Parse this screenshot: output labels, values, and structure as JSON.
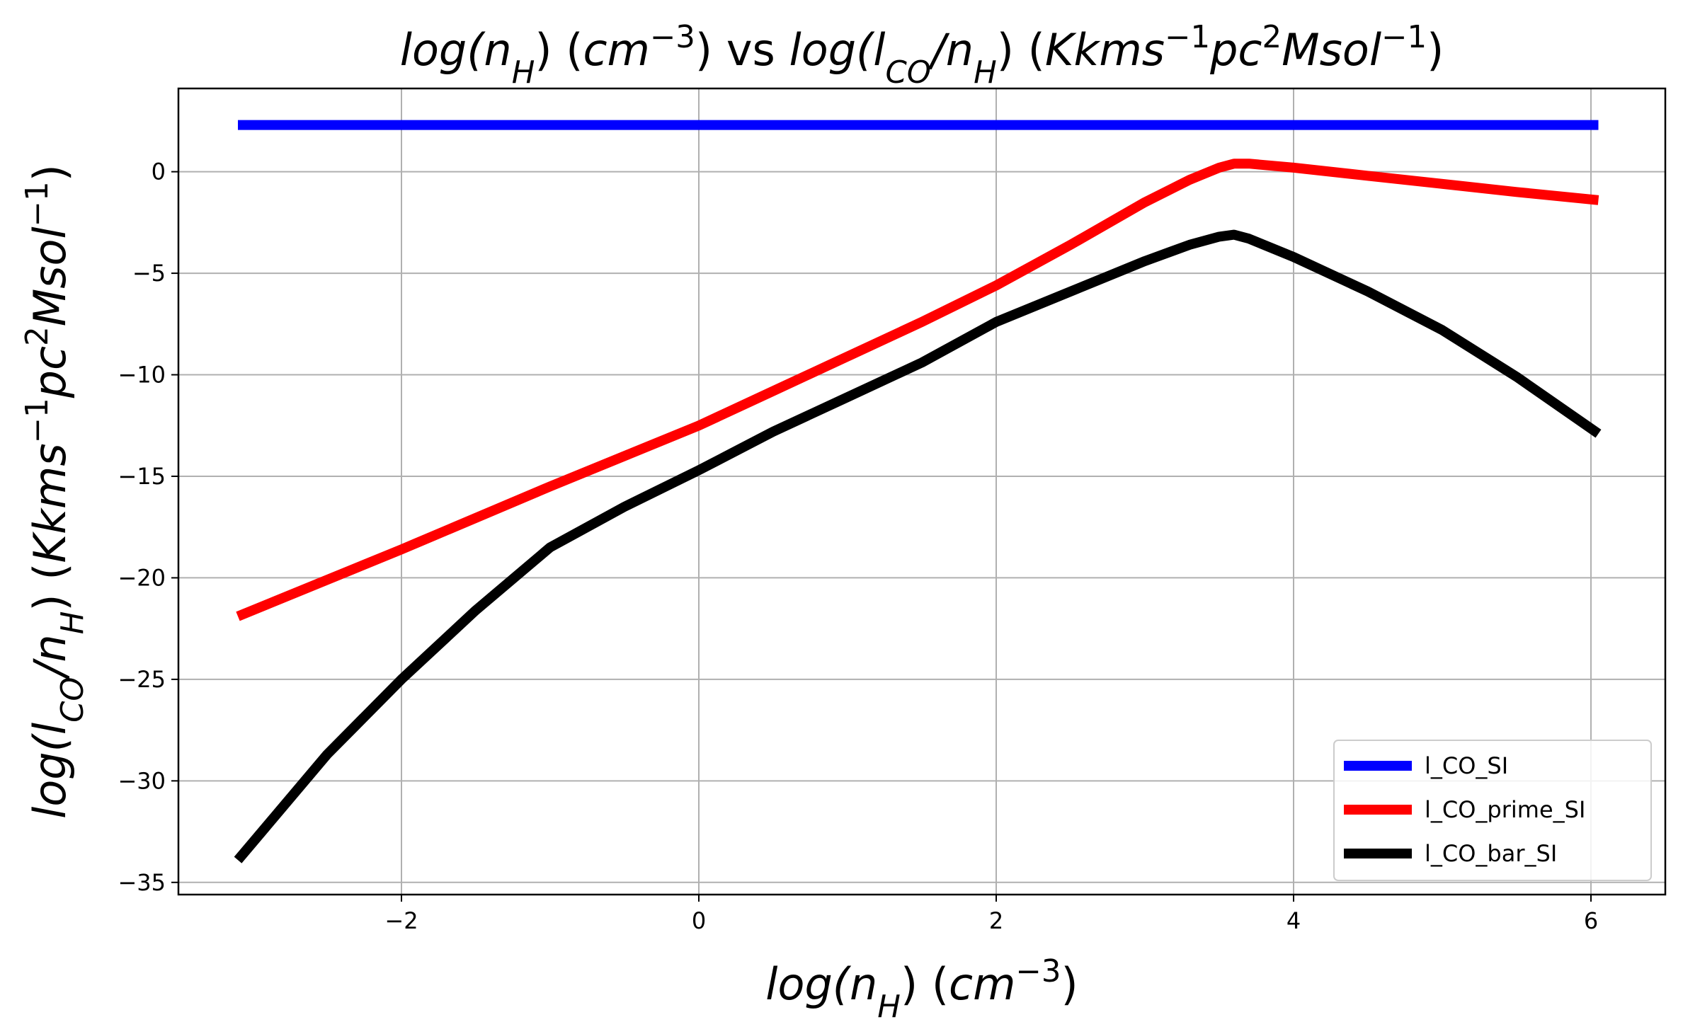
{
  "chart_data": {
    "type": "line",
    "title_parts": [
      {
        "t": "log(n",
        "it": true
      },
      {
        "t": "H",
        "sub": true,
        "it": true
      },
      {
        "t": ") (",
        "it": false
      },
      {
        "t": "cm",
        "it": true
      },
      {
        "t": "−3",
        "sup": true,
        "it": false
      },
      {
        "t": ") vs ",
        "it": false
      },
      {
        "t": "log(l",
        "it": true
      },
      {
        "t": "CO",
        "sub": true,
        "it": true
      },
      {
        "t": "/n",
        "it": true
      },
      {
        "t": "H",
        "sub": true,
        "it": true
      },
      {
        "t": ") (",
        "it": false
      },
      {
        "t": "Kkms",
        "it": true
      },
      {
        "t": "−1",
        "sup": true,
        "it": false
      },
      {
        "t": "pc",
        "it": true
      },
      {
        "t": "2",
        "sup": true,
        "it": false
      },
      {
        "t": "Msol",
        "it": true
      },
      {
        "t": "−1",
        "sup": true,
        "it": false
      },
      {
        "t": ")",
        "it": false
      }
    ],
    "xlabel_parts": [
      {
        "t": "log(n",
        "it": true
      },
      {
        "t": "H",
        "sub": true,
        "it": true
      },
      {
        "t": ") (",
        "it": false
      },
      {
        "t": "cm",
        "it": true
      },
      {
        "t": "−3",
        "sup": true,
        "it": false
      },
      {
        "t": ")",
        "it": false
      }
    ],
    "ylabel_parts": [
      {
        "t": "log(l",
        "it": true
      },
      {
        "t": "CO",
        "sub": true,
        "it": true
      },
      {
        "t": "/n",
        "it": true
      },
      {
        "t": "H",
        "sub": true,
        "it": true
      },
      {
        "t": ") (",
        "it": false
      },
      {
        "t": "Kkms",
        "it": true
      },
      {
        "t": "−1",
        "sup": true,
        "it": false
      },
      {
        "t": "pc",
        "it": true
      },
      {
        "t": "2",
        "sup": true,
        "it": false
      },
      {
        "t": "Msol",
        "it": true
      },
      {
        "t": "−1",
        "sup": true,
        "it": false
      },
      {
        "t": ")",
        "it": false
      }
    ],
    "xlim": [
      -3.5,
      6.5
    ],
    "ylim": [
      -35.6,
      4.1
    ],
    "xticks": [
      -2,
      0,
      2,
      4,
      6
    ],
    "xtick_labels": [
      "−2",
      "0",
      "2",
      "4",
      "6"
    ],
    "yticks": [
      0,
      -5,
      -10,
      -15,
      -20,
      -25,
      -30,
      -35
    ],
    "ytick_labels": [
      "0",
      "−5",
      "−10",
      "−15",
      "−20",
      "−25",
      "−30",
      "−35"
    ],
    "grid": true,
    "legend_placement": "lower-right",
    "series": [
      {
        "name": "l_CO_SI",
        "color": "#0000ff",
        "x": [
          -3.1,
          6.05
        ],
        "y": [
          2.3,
          2.3
        ]
      },
      {
        "name": "l_CO_prime_SI",
        "color": "#ff0000",
        "x": [
          -3.1,
          -2.0,
          -1.0,
          0.0,
          0.5,
          1.0,
          1.5,
          2.0,
          2.5,
          3.0,
          3.3,
          3.5,
          3.6,
          3.7,
          4.0,
          4.5,
          5.0,
          5.5,
          6.05
        ],
        "y": [
          -21.9,
          -18.6,
          -15.5,
          -12.5,
          -10.8,
          -9.1,
          -7.4,
          -5.6,
          -3.6,
          -1.5,
          -0.4,
          0.2,
          0.4,
          0.4,
          0.2,
          -0.2,
          -0.6,
          -1.0,
          -1.4
        ]
      },
      {
        "name": "l_CO_bar_SI",
        "color": "#000000",
        "x": [
          -3.1,
          -2.5,
          -2.0,
          -1.5,
          -1.0,
          -0.5,
          0.0,
          0.5,
          1.0,
          1.5,
          2.0,
          2.5,
          3.0,
          3.3,
          3.5,
          3.6,
          3.7,
          4.0,
          4.5,
          5.0,
          5.5,
          6.05
        ],
        "y": [
          -33.9,
          -28.7,
          -25.0,
          -21.6,
          -18.5,
          -16.5,
          -14.7,
          -12.8,
          -11.1,
          -9.4,
          -7.4,
          -5.9,
          -4.4,
          -3.6,
          -3.2,
          -3.1,
          -3.3,
          -4.2,
          -5.9,
          -7.8,
          -10.1,
          -12.9
        ]
      }
    ]
  }
}
